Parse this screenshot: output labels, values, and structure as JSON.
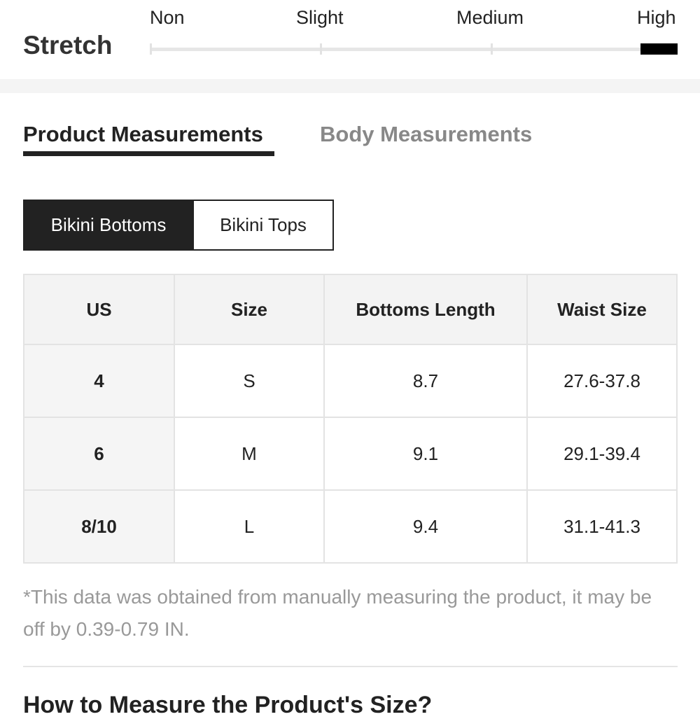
{
  "stretch": {
    "label": "Stretch",
    "levels": [
      "Non",
      "Slight",
      "Medium",
      "High"
    ],
    "selected": "High"
  },
  "tabs": [
    {
      "label": "Product Measurements",
      "active": true
    },
    {
      "label": "Body Measurements",
      "active": false
    }
  ],
  "segments": [
    {
      "label": "Bikini Bottoms",
      "active": true
    },
    {
      "label": "Bikini Tops",
      "active": false
    }
  ],
  "table": {
    "headers": [
      "US",
      "Size",
      "Bottoms Length",
      "Waist Size"
    ],
    "rows": [
      [
        "4",
        "S",
        "8.7",
        "27.6-37.8"
      ],
      [
        "6",
        "M",
        "9.1",
        "29.1-39.4"
      ],
      [
        "8/10",
        "L",
        "9.4",
        "31.1-41.3"
      ]
    ]
  },
  "note": "*This data was obtained from manually measuring the product, it may be off by 0.39-0.79 IN.",
  "howto_title": "How to Measure the Product's Size?"
}
